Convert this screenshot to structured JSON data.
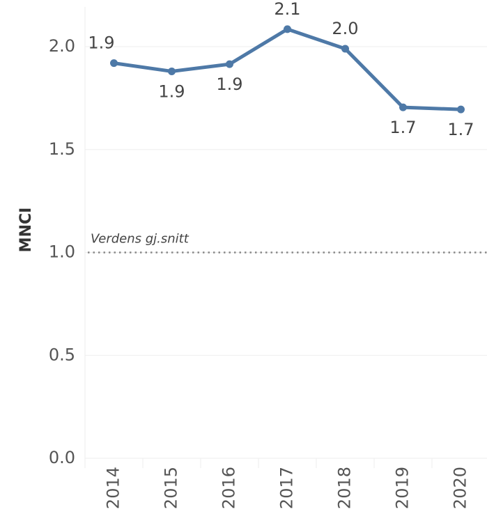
{
  "chart_data": {
    "type": "line",
    "y_label": "MNCI",
    "categories": [
      "2014",
      "2015",
      "2016",
      "2017",
      "2018",
      "2019",
      "2020"
    ],
    "series": [
      {
        "name": "MNCI",
        "color": "#4e79a7",
        "values": [
          1.92,
          1.88,
          1.915,
          2.085,
          1.99,
          1.705,
          1.695
        ],
        "value_labels": [
          "1.9",
          "1.9",
          "1.9",
          "2.1",
          "2.0",
          "1.7",
          "1.7"
        ]
      }
    ],
    "ylim": [
      0,
      2.2
    ],
    "yticks": [
      {
        "value": 0,
        "label": "0.0"
      },
      {
        "value": 0.5,
        "label": "0.5"
      },
      {
        "value": 1,
        "label": "1.0"
      },
      {
        "value": 1.5,
        "label": "1.5"
      },
      {
        "value": 2,
        "label": "2.0"
      }
    ],
    "grid": true,
    "reference_line": {
      "value": 1,
      "label": "Verdens gj.snitt"
    }
  }
}
